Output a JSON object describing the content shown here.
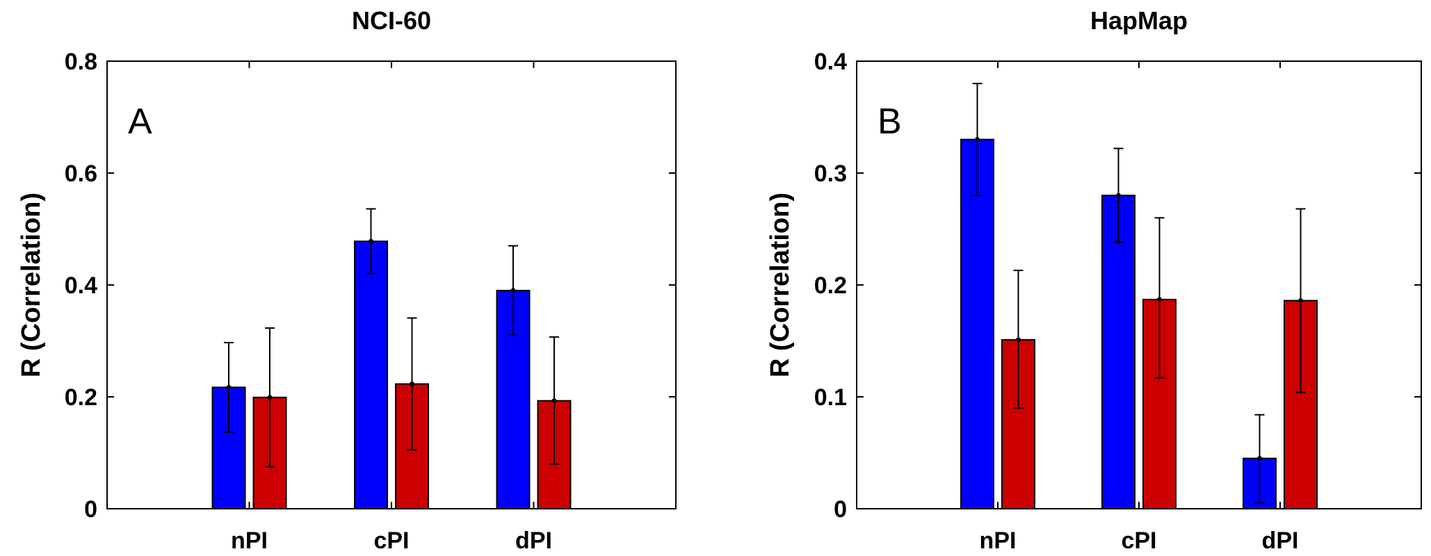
{
  "chart_data": [
    {
      "type": "bar",
      "title": "NCI-60",
      "panel_label": "A",
      "ylabel": "R (Correlation)",
      "xlabel": "",
      "categories": [
        "nPI",
        "cPI",
        "dPI"
      ],
      "ylim": [
        0,
        0.8
      ],
      "yticks": [
        0,
        0.2,
        0.4,
        0.6,
        0.8
      ],
      "ytick_labels": [
        "0",
        "0.2",
        "0.4",
        "0.6",
        "0.8"
      ],
      "xlim": [
        0,
        4
      ],
      "grid": false,
      "colors": [
        "#0000ff",
        "#cc0000"
      ],
      "series": [
        {
          "values": [
            0.217,
            0.478,
            0.39
          ],
          "err_low": [
            0.137,
            0.42,
            0.31
          ],
          "err_high": [
            0.297,
            0.536,
            0.47
          ]
        },
        {
          "values": [
            0.199,
            0.223,
            0.193
          ],
          "err_low": [
            0.075,
            0.105,
            0.08
          ],
          "err_high": [
            0.323,
            0.341,
            0.307
          ]
        }
      ]
    },
    {
      "type": "bar",
      "title": "HapMap",
      "panel_label": "B",
      "ylabel": "R (Correlation)",
      "xlabel": "",
      "categories": [
        "nPI",
        "cPI",
        "dPI"
      ],
      "ylim": [
        0,
        0.4
      ],
      "yticks": [
        0,
        0.1,
        0.2,
        0.3,
        0.4
      ],
      "ytick_labels": [
        "0",
        "0.1",
        "0.2",
        "0.3",
        "0.4"
      ],
      "xlim": [
        0,
        4
      ],
      "grid": false,
      "colors": [
        "#0000ff",
        "#cc0000"
      ],
      "series": [
        {
          "values": [
            0.33,
            0.28,
            0.045
          ],
          "err_low": [
            0.28,
            0.238,
            0.005
          ],
          "err_high": [
            0.38,
            0.322,
            0.084
          ]
        },
        {
          "values": [
            0.151,
            0.187,
            0.186
          ],
          "err_low": [
            0.09,
            0.117,
            0.104
          ],
          "err_high": [
            0.213,
            0.26,
            0.268
          ]
        }
      ]
    }
  ]
}
